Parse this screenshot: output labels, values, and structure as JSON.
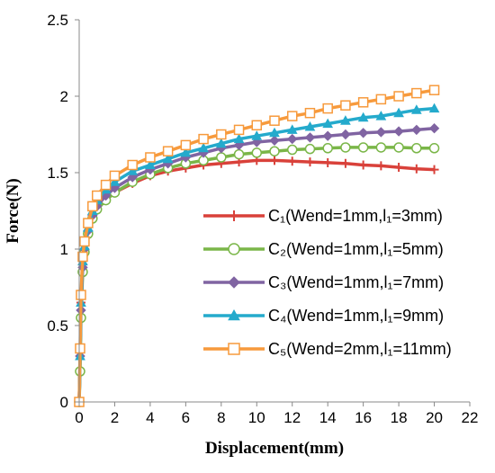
{
  "chart_data": {
    "type": "line",
    "title": "",
    "xlabel": "Displacement(mm)",
    "ylabel": "Force(N)",
    "xlim": [
      0,
      22
    ],
    "ylim": [
      0,
      2.5
    ],
    "xticks": [
      "0",
      "2",
      "4",
      "6",
      "8",
      "10",
      "12",
      "14",
      "16",
      "18",
      "20",
      "22"
    ],
    "yticks": [
      "0",
      "0.5",
      "1",
      "1.5",
      "2",
      "2.5"
    ],
    "grid": false,
    "legend_position": "right",
    "series": [
      {
        "name": "C₁(Wend=1mm,l₁=3mm)",
        "color": "#d9413a",
        "marker": "plus",
        "x": [
          0,
          0.05,
          0.1,
          0.2,
          0.3,
          0.5,
          0.75,
          1,
          1.5,
          2,
          3,
          4,
          5,
          6,
          7,
          8,
          9,
          10,
          11,
          12,
          13,
          14,
          15,
          16,
          17,
          18,
          19,
          20
        ],
        "y": [
          0,
          0.3,
          0.65,
          0.9,
          1.0,
          1.1,
          1.2,
          1.26,
          1.32,
          1.37,
          1.43,
          1.48,
          1.51,
          1.53,
          1.55,
          1.56,
          1.57,
          1.58,
          1.58,
          1.575,
          1.57,
          1.565,
          1.56,
          1.55,
          1.545,
          1.535,
          1.525,
          1.52
        ]
      },
      {
        "name": "C₂(Wend=1mm,l₁=5mm)",
        "color": "#7ab648",
        "marker": "circle",
        "x": [
          0,
          0.05,
          0.1,
          0.2,
          0.3,
          0.5,
          0.75,
          1,
          1.5,
          2,
          3,
          4,
          5,
          6,
          7,
          8,
          9,
          10,
          11,
          12,
          13,
          14,
          15,
          16,
          17,
          18,
          19,
          20
        ],
        "y": [
          0,
          0.2,
          0.55,
          0.85,
          0.98,
          1.1,
          1.2,
          1.26,
          1.32,
          1.37,
          1.44,
          1.49,
          1.53,
          1.56,
          1.58,
          1.6,
          1.62,
          1.63,
          1.64,
          1.65,
          1.655,
          1.66,
          1.665,
          1.665,
          1.665,
          1.665,
          1.66,
          1.66
        ]
      },
      {
        "name": "C₃(Wend=1mm,l₁=7mm)",
        "color": "#8064a2",
        "marker": "diamond",
        "x": [
          0,
          0.05,
          0.1,
          0.2,
          0.3,
          0.5,
          0.75,
          1,
          1.5,
          2,
          3,
          4,
          5,
          6,
          7,
          8,
          9,
          10,
          11,
          12,
          13,
          14,
          15,
          16,
          17,
          18,
          19,
          20
        ],
        "y": [
          0,
          0.3,
          0.6,
          0.88,
          1.0,
          1.12,
          1.22,
          1.28,
          1.35,
          1.4,
          1.47,
          1.52,
          1.56,
          1.6,
          1.63,
          1.66,
          1.68,
          1.7,
          1.71,
          1.72,
          1.73,
          1.74,
          1.75,
          1.76,
          1.765,
          1.77,
          1.78,
          1.79
        ]
      },
      {
        "name": "C₄(Wend=1mm,l₁=9mm)",
        "color": "#24aacc",
        "marker": "triangle",
        "x": [
          0,
          0.05,
          0.1,
          0.2,
          0.3,
          0.5,
          0.75,
          1,
          1.5,
          2,
          3,
          4,
          5,
          6,
          7,
          8,
          9,
          10,
          11,
          12,
          13,
          14,
          15,
          16,
          17,
          18,
          19,
          20
        ],
        "y": [
          0,
          0.3,
          0.65,
          0.92,
          1.02,
          1.14,
          1.25,
          1.32,
          1.39,
          1.44,
          1.51,
          1.55,
          1.59,
          1.63,
          1.66,
          1.69,
          1.72,
          1.74,
          1.76,
          1.78,
          1.8,
          1.82,
          1.84,
          1.86,
          1.87,
          1.89,
          1.91,
          1.92
        ]
      },
      {
        "name": "C₅(Wend=2mm,l₁=11mm)",
        "color": "#f79a3c",
        "marker": "square",
        "x": [
          0,
          0.05,
          0.1,
          0.2,
          0.3,
          0.5,
          0.75,
          1,
          1.5,
          2,
          3,
          4,
          5,
          6,
          7,
          8,
          9,
          10,
          11,
          12,
          13,
          14,
          15,
          16,
          17,
          18,
          19,
          20
        ],
        "y": [
          0,
          0.35,
          0.7,
          0.95,
          1.05,
          1.17,
          1.28,
          1.35,
          1.42,
          1.48,
          1.55,
          1.6,
          1.64,
          1.68,
          1.72,
          1.75,
          1.78,
          1.81,
          1.84,
          1.87,
          1.89,
          1.92,
          1.94,
          1.96,
          1.98,
          2.0,
          2.02,
          2.04
        ]
      }
    ]
  }
}
